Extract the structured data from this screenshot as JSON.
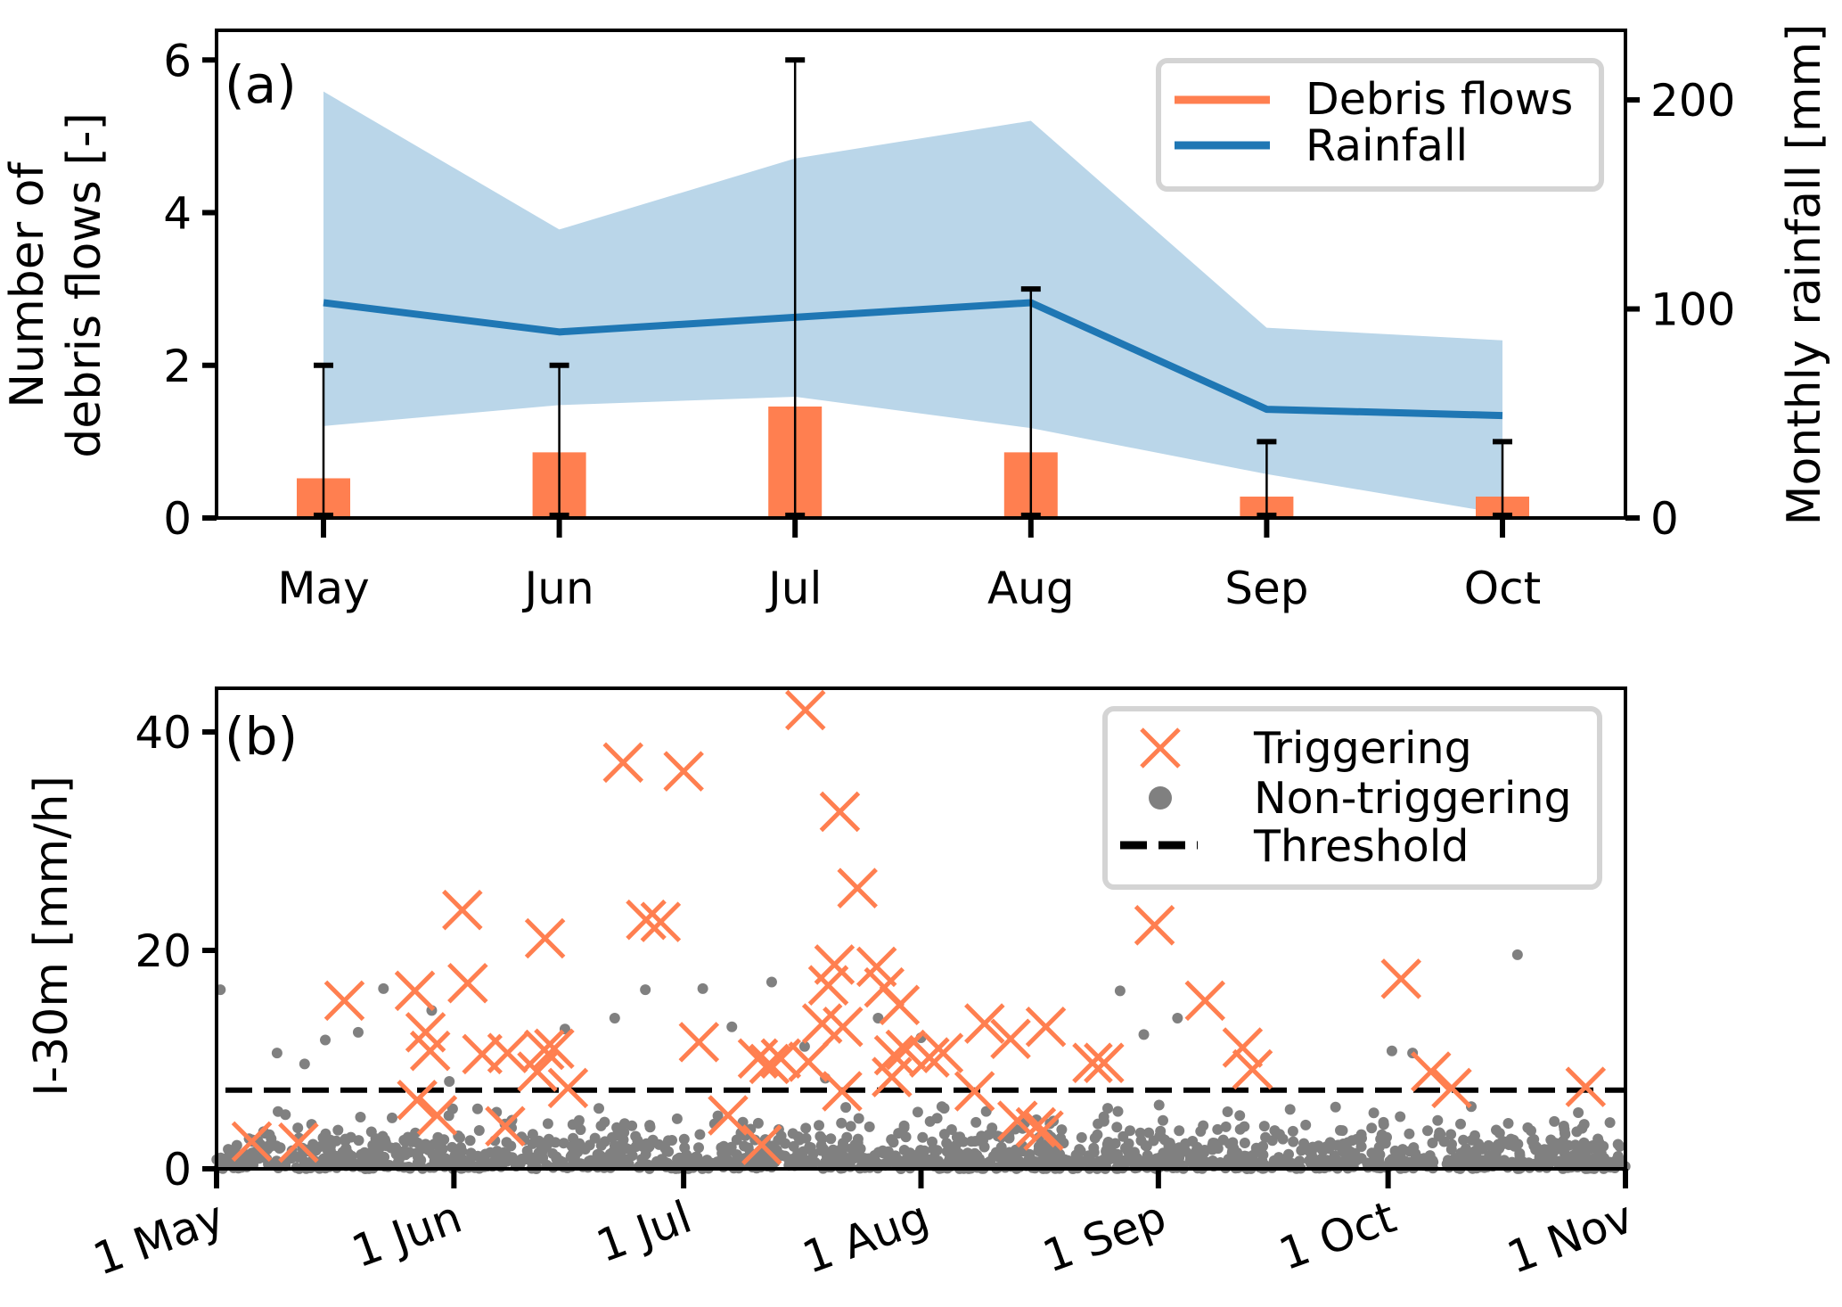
{
  "chart_data": [
    {
      "panel": "(a)",
      "type": "bar+line",
      "title": "",
      "xlabel": "",
      "ylabel": "Number of debris flows [-]",
      "ylabel_lines": [
        "Number of",
        "debris flows [-]"
      ],
      "y2label": "Monthly rainfall [mm]",
      "categories": [
        "May",
        "Jun",
        "Jul",
        "Aug",
        "Sep",
        "Oct"
      ],
      "ylim": [
        0,
        6.26
      ],
      "yticks": [
        0,
        2,
        4,
        6
      ],
      "y2lim": [
        0,
        228.6
      ],
      "y2ticks": [
        0,
        100,
        200
      ],
      "grid": false,
      "legend_position": "top-right",
      "series": [
        {
          "name": "Debris flows",
          "type": "bar",
          "axis": "left",
          "color": "#ff7f50",
          "values": [
            0.52,
            0.86,
            1.46,
            0.86,
            0.28,
            0.28
          ],
          "error_min": [
            0,
            0,
            0,
            0,
            0,
            0
          ],
          "error_max": [
            2,
            2,
            6,
            3,
            1,
            1
          ]
        },
        {
          "name": "Rainfall",
          "type": "line",
          "axis": "right",
          "color": "#1f77b4",
          "values": [
            103,
            89,
            96,
            103,
            52,
            49
          ],
          "band_lower": [
            44,
            54,
            58,
            43,
            21,
            2
          ],
          "band_upper": [
            204,
            138,
            172,
            190,
            91,
            85
          ],
          "band_color": "#bad6e9"
        }
      ]
    },
    {
      "panel": "(b)",
      "type": "scatter",
      "title": "",
      "xlabel": "",
      "ylabel": "I-30m [mm/h]",
      "x_unit": "days since 1 May",
      "xlim": [
        0,
        184
      ],
      "xticks": [
        0,
        31,
        61,
        92,
        123,
        153,
        184
      ],
      "xtick_labels": [
        "1 May",
        "1 Jun",
        "1 Jul",
        "1 Aug",
        "1 Sep",
        "1 Oct",
        "1 Nov"
      ],
      "ylim": [
        0,
        44
      ],
      "yticks": [
        0,
        20,
        40
      ],
      "grid": false,
      "legend_position": "top-right",
      "threshold": {
        "name": "Threshold",
        "value": 7.2,
        "color": "#000000",
        "style": "dashed"
      },
      "series": [
        {
          "name": "Triggering",
          "marker": "x",
          "color": "#ff7f50",
          "points": [
            [
              4.6,
              2.5
            ],
            [
              10.7,
              2.4
            ],
            [
              16.7,
              15.4
            ],
            [
              25.9,
              16.3
            ],
            [
              27.3,
              12.5
            ],
            [
              27.9,
              10.8
            ],
            [
              26.2,
              6.3
            ],
            [
              28.8,
              4.9
            ],
            [
              32.1,
              23.7
            ],
            [
              32.8,
              17.0
            ],
            [
              34.7,
              10.5
            ],
            [
              38.0,
              10.6
            ],
            [
              37.7,
              3.9
            ],
            [
              42.9,
              21.1
            ],
            [
              42.8,
              10.9
            ],
            [
              44.1,
              11.0
            ],
            [
              41.9,
              8.9
            ],
            [
              45.9,
              7.4
            ],
            [
              53.1,
              37.2
            ],
            [
              56.1,
              22.8
            ],
            [
              58.0,
              22.6
            ],
            [
              61.0,
              36.4
            ],
            [
              63.0,
              11.6
            ],
            [
              66.8,
              4.9
            ],
            [
              71.2,
              2.2
            ],
            [
              70.7,
              10.1
            ],
            [
              72.2,
              9.6
            ],
            [
              73.7,
              10.1
            ],
            [
              77.3,
              9.8
            ],
            [
              76.9,
              42.0
            ],
            [
              81.4,
              32.7
            ],
            [
              83.7,
              25.7
            ],
            [
              79.1,
              13.3
            ],
            [
              79.9,
              16.8
            ],
            [
              80.7,
              18.7
            ],
            [
              81.8,
              13.0
            ],
            [
              81.7,
              7.1
            ],
            [
              86.2,
              18.5
            ],
            [
              87.2,
              16.6
            ],
            [
              89.2,
              15.0
            ],
            [
              88.5,
              10.4
            ],
            [
              88.2,
              8.4
            ],
            [
              90.0,
              10.9
            ],
            [
              93.1,
              10.2
            ],
            [
              94.9,
              10.6
            ],
            [
              99.0,
              7.1
            ],
            [
              100.3,
              13.3
            ],
            [
              103.7,
              11.9
            ],
            [
              104.6,
              4.4
            ],
            [
              107.0,
              3.8
            ],
            [
              108.3,
              13.0
            ],
            [
              108.0,
              3.5
            ],
            [
              114.4,
              9.7
            ],
            [
              115.9,
              9.7
            ],
            [
              122.5,
              22.3
            ],
            [
              129.1,
              15.4
            ],
            [
              134.0,
              11.1
            ],
            [
              135.3,
              9.1
            ],
            [
              154.7,
              17.4
            ],
            [
              158.6,
              8.9
            ],
            [
              161.3,
              7.4
            ],
            [
              178.8,
              7.5
            ]
          ]
        },
        {
          "name": "Non-triggering",
          "marker": "o",
          "color": "#808080",
          "outlier_points": [
            [
              0.5,
              16.4
            ],
            [
              7.9,
              10.6
            ],
            [
              11.5,
              9.6
            ],
            [
              14.2,
              11.8
            ],
            [
              18.5,
              12.5
            ],
            [
              28.1,
              14.5
            ],
            [
              21.8,
              16.5
            ],
            [
              30.4,
              8.0
            ],
            [
              45.5,
              12.8
            ],
            [
              52.0,
              13.8
            ],
            [
              56.0,
              16.4
            ],
            [
              63.5,
              16.5
            ],
            [
              67.3,
              13.0
            ],
            [
              72.5,
              17.1
            ],
            [
              76.8,
              11.2
            ],
            [
              79.5,
              8.3
            ],
            [
              86.4,
              13.8
            ],
            [
              92.0,
              12.0
            ],
            [
              118.0,
              16.3
            ],
            [
              121.1,
              12.3
            ],
            [
              125.5,
              13.8
            ],
            [
              156.2,
              10.6
            ],
            [
              169.9,
              19.6
            ],
            [
              153.5,
              10.8
            ]
          ],
          "bulk_description": "dense cloud of roughly 1500 non-triggering events, mostly between 0 and 6 mm/h across the whole season",
          "bulk_count": 1500,
          "bulk_range": [
            0,
            7.5
          ]
        }
      ]
    }
  ],
  "panels": {
    "a": {
      "label": "(a)"
    },
    "b": {
      "label": "(b)"
    }
  }
}
